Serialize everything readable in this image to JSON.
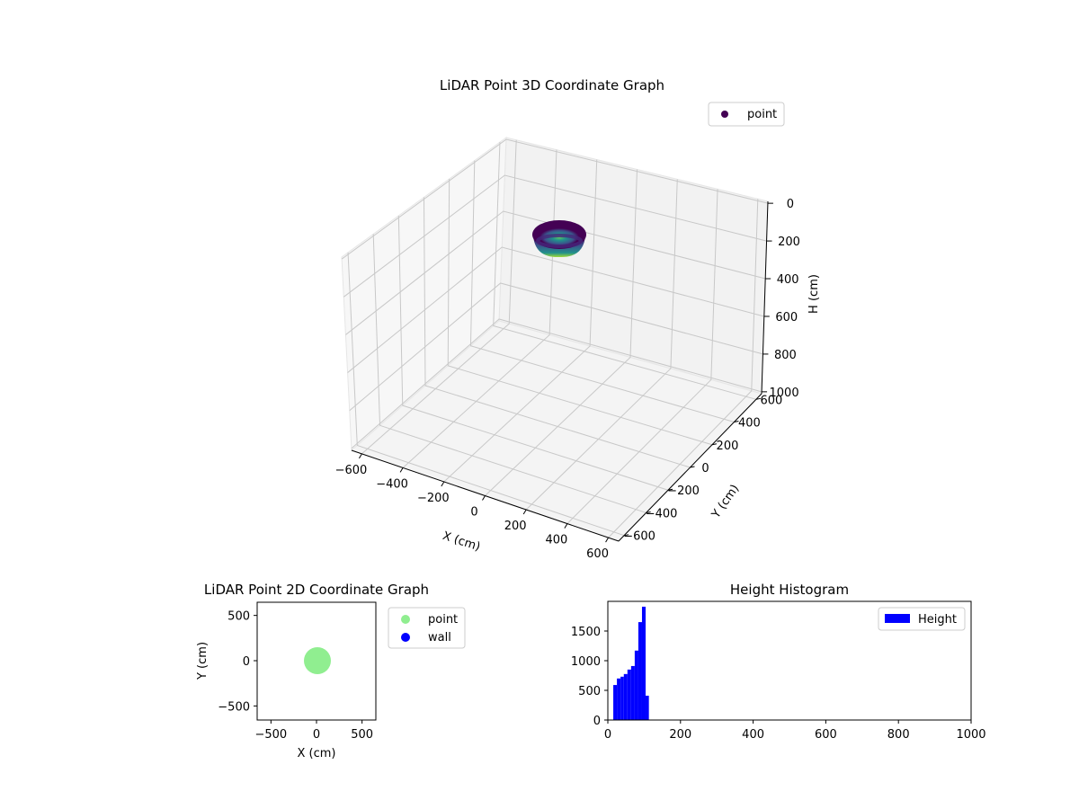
{
  "chart_data": [
    {
      "type": "scatter3d",
      "title": "LiDAR Point 3D Coordinate Graph",
      "xlabel": "X (cm)",
      "ylabel": "Y (cm)",
      "zlabel": "H (cm)",
      "xlim": [
        -650,
        650
      ],
      "ylim": [
        -650,
        650
      ],
      "zlim": [
        1000,
        0
      ],
      "xticks": [
        "−600",
        "−400",
        "−200",
        "0",
        "200",
        "400",
        "600"
      ],
      "yticks": [
        "−600",
        "−400",
        "−200",
        "0",
        "200",
        "400",
        "600"
      ],
      "zticks": [
        "0",
        "200",
        "400",
        "600",
        "800",
        "1000"
      ],
      "legend": [
        {
          "label": "point",
          "color": "#440154"
        }
      ],
      "colormap": "viridis",
      "description": "Bowl-shaped cluster of points centered near X=0, Y=0, radius ~100 cm, heights ~15-110 cm"
    },
    {
      "type": "scatter",
      "title": "LiDAR Point 2D Coordinate Graph",
      "xlabel": "X (cm)",
      "ylabel": "Y (cm)",
      "xlim": [
        -650,
        650
      ],
      "ylim": [
        -650,
        650
      ],
      "xticks": [
        "−500",
        "0",
        "500"
      ],
      "yticks": [
        "−500",
        "0",
        "500"
      ],
      "legend": [
        {
          "label": "point",
          "color": "#90ee90"
        },
        {
          "label": "wall",
          "color": "#0000ff"
        }
      ],
      "series": [
        {
          "name": "point",
          "center": [
            0,
            0
          ],
          "radius": 100,
          "color": "#90ee90"
        },
        {
          "name": "wall",
          "points": [],
          "color": "#0000ff"
        }
      ]
    },
    {
      "type": "histogram",
      "title": "Height Histogram",
      "xlim": [
        0,
        1000
      ],
      "ylim": [
        0,
        1950
      ],
      "xticks": [
        "0",
        "200",
        "400",
        "600",
        "800",
        "1000"
      ],
      "yticks": [
        "0",
        "500",
        "1000",
        "1500"
      ],
      "legend": [
        {
          "label": "Height",
          "color": "#0000ff"
        }
      ],
      "bin_edges": [
        15,
        25,
        35,
        44,
        54,
        64,
        74,
        84,
        94,
        104,
        113
      ],
      "values": [
        590,
        700,
        730,
        775,
        850,
        910,
        1170,
        1650,
        1910,
        410
      ]
    }
  ]
}
